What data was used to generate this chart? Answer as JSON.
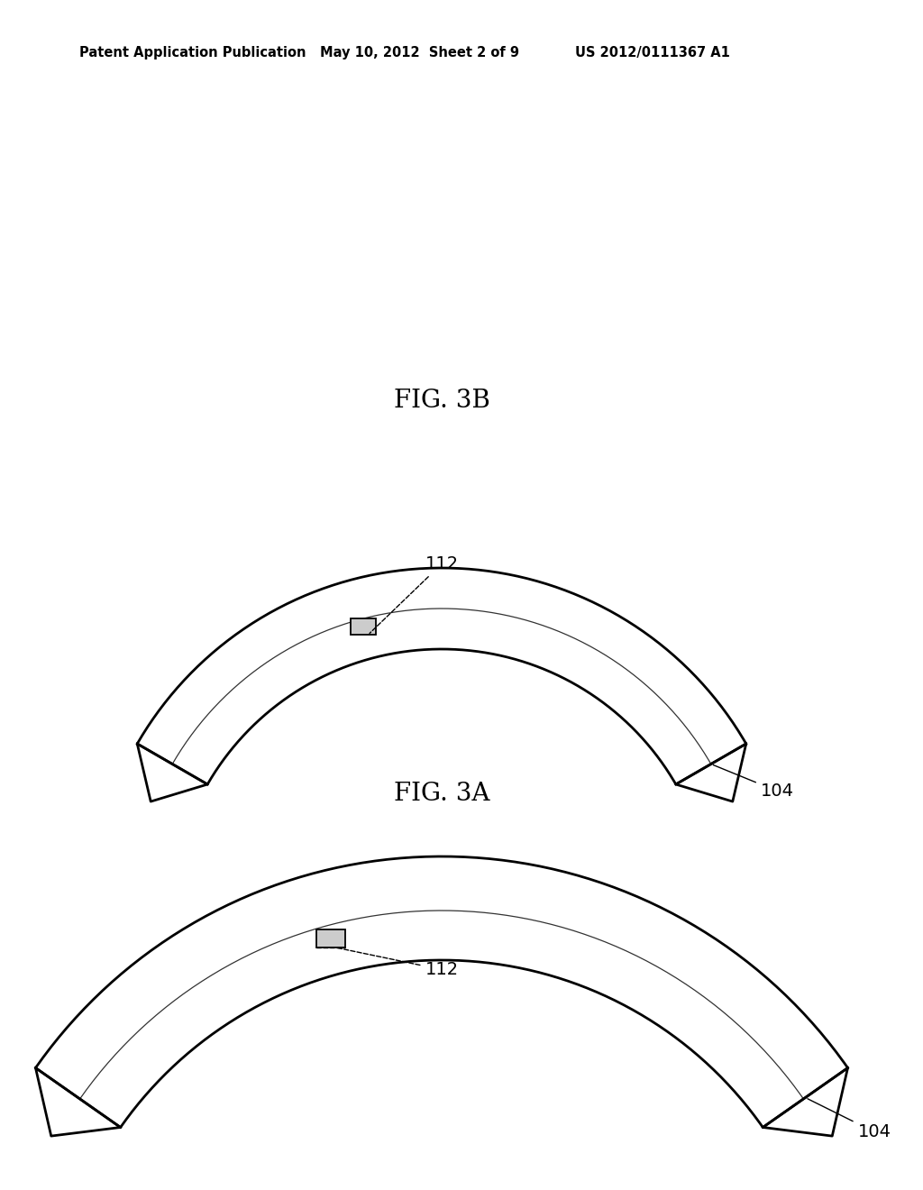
{
  "bg_color": "#ffffff",
  "line_color": "#000000",
  "header_left": "Patent Application Publication",
  "header_mid": "May 10, 2012  Sheet 2 of 9",
  "header_right": "US 2012/0111367 A1",
  "fig3a_label": "FIG. 3A",
  "fig3b_label": "FIG. 3B",
  "label_112": "112",
  "label_104": "104"
}
